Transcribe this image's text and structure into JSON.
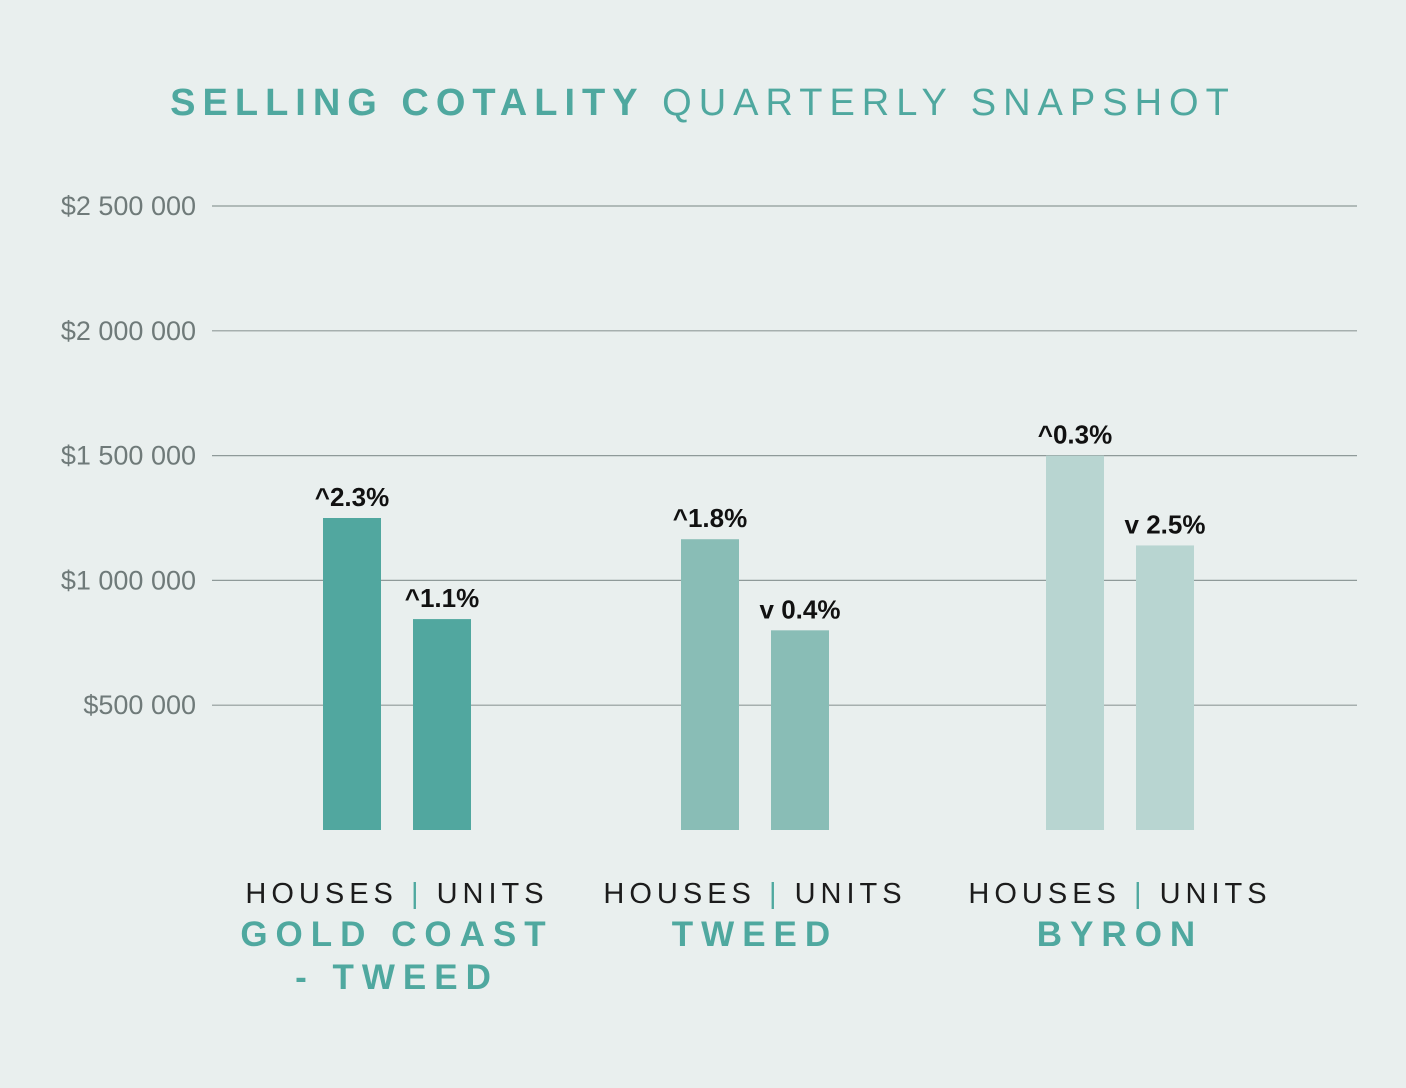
{
  "title": {
    "bold": "SELLING COTALITY",
    "light": "QUARTERLY SNAPSHOT"
  },
  "colors": {
    "background": "#e9efee",
    "title": "#4fa89f",
    "gridline": "#8f9a99",
    "tick_label": "#6f7a79",
    "data_label": "#111111",
    "gold_coast_tweed": "#51a79f",
    "tweed": "#89bdb6",
    "byron": "#b8d5d1"
  },
  "chart_data": {
    "type": "bar",
    "title": "SELLING COTALITY QUARTERLY SNAPSHOT",
    "ylim": [
      0,
      2500000
    ],
    "yticks": [
      500000,
      1000000,
      1500000,
      2000000,
      2500000
    ],
    "ytick_labels": [
      "$500 000",
      "$1 000 000",
      "$1 500 000",
      "$2 000 000",
      "$2 500 000"
    ],
    "grid": true,
    "groups": [
      {
        "name": "GOLD COAST - TWEED",
        "name_lines": [
          "GOLD COAST",
          "- TWEED"
        ],
        "color": "#51a79f",
        "sublabel": {
          "left": "HOUSES",
          "sep": "|",
          "right": "UNITS"
        },
        "bars": [
          {
            "category": "HOUSES",
            "value": 1250000,
            "label": "^2.3%"
          },
          {
            "category": "UNITS",
            "value": 845000,
            "label": "^1.1%"
          }
        ]
      },
      {
        "name": "TWEED",
        "name_lines": [
          "TWEED"
        ],
        "color": "#89bdb6",
        "sublabel": {
          "left": "HOUSES",
          "sep": "|",
          "right": "UNITS"
        },
        "bars": [
          {
            "category": "HOUSES",
            "value": 1165000,
            "label": "^1.8%"
          },
          {
            "category": "UNITS",
            "value": 800000,
            "label": "v 0.4%"
          }
        ]
      },
      {
        "name": "BYRON",
        "name_lines": [
          "BYRON"
        ],
        "color": "#b8d5d1",
        "sublabel": {
          "left": "HOUSES",
          "sep": "|",
          "right": "UNITS"
        },
        "bars": [
          {
            "category": "HOUSES",
            "value": 1500000,
            "label": "^0.3%"
          },
          {
            "category": "UNITS",
            "value": 1140000,
            "label": "v 2.5%"
          }
        ]
      }
    ]
  }
}
